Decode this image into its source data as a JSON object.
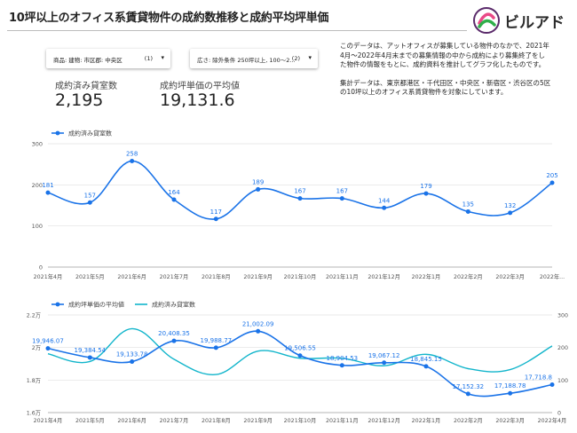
{
  "header": {
    "title": "10坪以上のオフィス系賃貸物件の成約数推移と成約平均坪単価",
    "logo_text": "ビルアド"
  },
  "filters": [
    {
      "label": "商品: 建物: 市区郡: 中央区",
      "count": "(1)"
    },
    {
      "label": "広さ: 除外条件 250坪以上, 100～2...",
      "count": "(2)"
    }
  ],
  "kpis": [
    {
      "label": "成約済み貸室数",
      "value": "2,195"
    },
    {
      "label": "成約坪単価の平均値",
      "value": "19,131.6"
    }
  ],
  "notes": [
    "このデータは、アットオフィスが募集している物件のなかで、2021年4月～2022年4月末までの募集情報の中から成約により募集終了をした物件の情報をもとに、成約資料を推計してグラフ化したものです。",
    "集計データは、東京都港区・千代田区・中央区・新宿区・渋谷区の5区の10坪以上のオフィス系賃貸物件を対象にしています。"
  ],
  "colors": {
    "blue": "#1a73e8",
    "teal": "#12b5cb",
    "grid": "#e0e0e0"
  },
  "chart_data": [
    {
      "type": "line",
      "categories": [
        "2021年4月",
        "2021年5月",
        "2021年6月",
        "2021年7月",
        "2021年8月",
        "2021年9月",
        "2021年10月",
        "2021年11月",
        "2021年12月",
        "2022年1月",
        "2022年2月",
        "2022年3月",
        "2022年4月"
      ],
      "tick_labels": [
        "2021年4月",
        "2021年5月",
        "2021年6月",
        "2021年7月",
        "2021年8月",
        "2021年9月",
        "2021年10月",
        "2021年11月",
        "2021年12月",
        "2022年1月",
        "2022年2月",
        "2022年3月",
        "2022年..."
      ],
      "series": [
        {
          "name": "成約済み貸室数",
          "color": "#1a73e8",
          "values": [
            181,
            157,
            258,
            164,
            117,
            189,
            167,
            167,
            144,
            179,
            135,
            132,
            205
          ]
        }
      ],
      "data_labels": [
        "181",
        "157",
        "258",
        "164",
        "117",
        "189",
        "167",
        "167",
        "144",
        "179",
        "135",
        "132",
        "205"
      ],
      "ylim": [
        0,
        300
      ],
      "yticks": [
        "0",
        "100",
        "200",
        "300"
      ],
      "legend": "top-left",
      "grid": true
    },
    {
      "type": "line",
      "categories": [
        "2021年4月",
        "2021年5月",
        "2021年6月",
        "2021年7月",
        "2021年8月",
        "2021年9月",
        "2021年10月",
        "2021年11月",
        "2021年12月",
        "2022年1月",
        "2022年2月",
        "2022年3月",
        "2022年4月"
      ],
      "tick_labels": [
        "2021年4月",
        "2021年5月",
        "2021年6月",
        "2021年7月",
        "2021年8月",
        "2021年9月",
        "2021年10月",
        "2021年11月",
        "2021年12月",
        "2022年1月",
        "2022年2月",
        "2022年3月",
        "2022年4月"
      ],
      "series": [
        {
          "name": "成約坪単価の平均値",
          "color": "#1a73e8",
          "axis": "left",
          "values": [
            19946.07,
            19384.54,
            19133.78,
            20408.35,
            19988.77,
            21002.09,
            19506.55,
            18904.53,
            19067.12,
            18845.15,
            17152.32,
            17188.78,
            17718.8
          ]
        },
        {
          "name": "成約済み貸室数",
          "color": "#12b5cb",
          "axis": "right",
          "values": [
            181,
            157,
            258,
            164,
            117,
            189,
            167,
            167,
            144,
            179,
            135,
            132,
            205
          ]
        }
      ],
      "data_labels": [
        "19,946.07",
        "19,384.54",
        "19,133.78",
        "20,408.35",
        "19,988.77",
        "21,002.09",
        "19,506.55",
        "18,904.53",
        "19,067.12",
        "18,845.15",
        "17,152.32",
        "17,188.78",
        "17,718.8"
      ],
      "ylim_left": [
        16000,
        22000
      ],
      "ylim_right": [
        0,
        300
      ],
      "yticks_left": [
        "1.6万",
        "1.8万",
        "2万",
        "2.2万"
      ],
      "yticks_right": [
        "0",
        "100",
        "200",
        "300"
      ],
      "legend": "top-left",
      "grid": true
    }
  ]
}
